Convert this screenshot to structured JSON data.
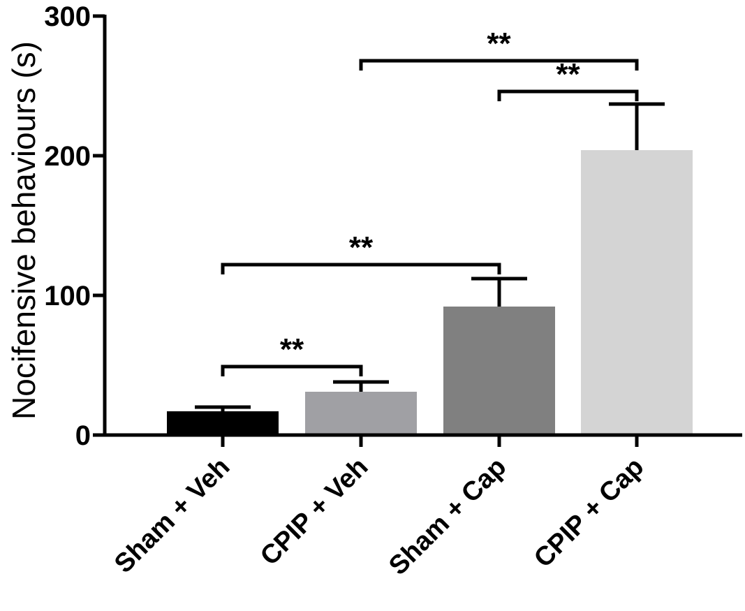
{
  "chart_data": {
    "type": "bar",
    "title": "",
    "xlabel": "",
    "ylabel": "Nocifensive behaviours (s)",
    "ylim": [
      0,
      300
    ],
    "yticks": [
      0,
      100,
      200,
      300
    ],
    "ytick_labels": [
      "0",
      "100",
      "200",
      "300"
    ],
    "categories": [
      "Sham + Veh",
      "CPIP + Veh",
      "Sham + Cap",
      "CPIP + Cap"
    ],
    "values": [
      17,
      31,
      92,
      204
    ],
    "errors": [
      3,
      7,
      20,
      33
    ],
    "colors": [
      "#000000",
      "#a0a0a4",
      "#808080",
      "#d4d4d4"
    ],
    "significance": [
      {
        "from": 0,
        "to": 1,
        "y": 49,
        "label": "**"
      },
      {
        "from": 0,
        "to": 2,
        "y": 122,
        "label": "**"
      },
      {
        "from": 1,
        "to": 3,
        "y": 268,
        "label": "**"
      },
      {
        "from": 2,
        "to": 3,
        "y": 246,
        "label": "**"
      }
    ]
  }
}
